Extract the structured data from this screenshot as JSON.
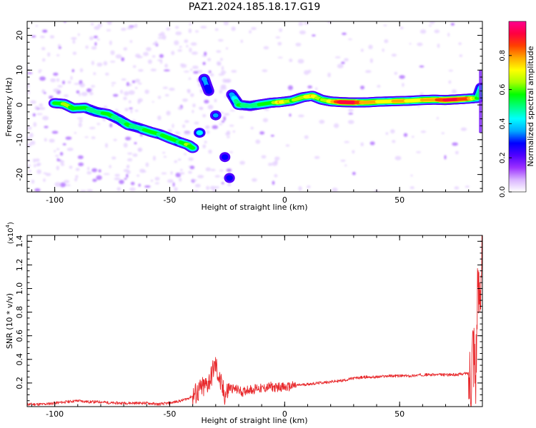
{
  "title": "PAZ1.2024.185.18.17.G19",
  "chart_data": [
    {
      "type": "heatmap",
      "xlabel": "Height of straight line (km)",
      "ylabel": "Frequency (Hz)",
      "xlim": [
        -112,
        86
      ],
      "ylim": [
        -25,
        24
      ],
      "xticks": [
        -100,
        -50,
        0,
        50
      ],
      "yticks": [
        -20,
        -10,
        0,
        10,
        20
      ],
      "colorbar": {
        "label": "Normalized spectral amplitude",
        "range": [
          0,
          1
        ],
        "ticks": [
          "0.0",
          "0.2",
          "0.4",
          "0.6",
          "0.8"
        ],
        "colormap": [
          "#ffffff",
          "#d9b3ff",
          "#9b30ff",
          "#5000ff",
          "#0000ff",
          "#00aaff",
          "#00ffff",
          "#00ff80",
          "#00ff00",
          "#aaff00",
          "#ffff00",
          "#ffaa00",
          "#ff4000",
          "#ff0040",
          "#ff0090"
        ]
      },
      "ridge": [
        {
          "x": -100,
          "y": 0.5,
          "a": 0.55
        },
        {
          "x": -96,
          "y": 0.3,
          "a": 0.62
        },
        {
          "x": -92,
          "y": -1.0,
          "a": 0.6
        },
        {
          "x": -87,
          "y": -0.8,
          "a": 0.55
        },
        {
          "x": -82,
          "y": -2.0,
          "a": 0.5
        },
        {
          "x": -77,
          "y": -2.6,
          "a": 0.56
        },
        {
          "x": -72,
          "y": -4.2,
          "a": 0.5
        },
        {
          "x": -68,
          "y": -5.8,
          "a": 0.55
        },
        {
          "x": -64,
          "y": -6.5,
          "a": 0.5
        },
        {
          "x": -58,
          "y": -7.8,
          "a": 0.58
        },
        {
          "x": -54,
          "y": -8.5,
          "a": 0.52
        },
        {
          "x": -50,
          "y": -9.6,
          "a": 0.6
        },
        {
          "x": -46,
          "y": -10.6,
          "a": 0.52
        },
        {
          "x": -42,
          "y": -11.5,
          "a": 0.63
        },
        {
          "x": -40,
          "y": -12.4,
          "a": 0.55
        },
        {
          "x": -37,
          "y": -8.0,
          "a": 0.45
        },
        {
          "x": -35,
          "y": 7.5,
          "a": 0.35
        },
        {
          "x": -33,
          "y": 4.0,
          "a": 0.3
        },
        {
          "x": -30,
          "y": -3.0,
          "a": 0.35
        },
        {
          "x": -26,
          "y": -15.0,
          "a": 0.3
        },
        {
          "x": -24,
          "y": -21.0,
          "a": 0.3
        },
        {
          "x": -23,
          "y": 3.0,
          "a": 0.35
        },
        {
          "x": -20,
          "y": 0.0,
          "a": 0.55
        },
        {
          "x": -15,
          "y": -0.3,
          "a": 0.5
        },
        {
          "x": -10,
          "y": 0.2,
          "a": 0.55
        },
        {
          "x": -6,
          "y": 0.6,
          "a": 0.55
        },
        {
          "x": -2,
          "y": 0.8,
          "a": 0.75
        },
        {
          "x": 3,
          "y": 1.2,
          "a": 0.6
        },
        {
          "x": 8,
          "y": 2.2,
          "a": 0.65
        },
        {
          "x": 12,
          "y": 2.6,
          "a": 0.75
        },
        {
          "x": 16,
          "y": 1.5,
          "a": 0.6
        },
        {
          "x": 20,
          "y": 1.0,
          "a": 0.7
        },
        {
          "x": 25,
          "y": 0.8,
          "a": 0.95
        },
        {
          "x": 30,
          "y": 0.7,
          "a": 0.95
        },
        {
          "x": 35,
          "y": 0.7,
          "a": 0.75
        },
        {
          "x": 40,
          "y": 0.9,
          "a": 0.75
        },
        {
          "x": 45,
          "y": 1.0,
          "a": 0.7
        },
        {
          "x": 50,
          "y": 1.1,
          "a": 0.8
        },
        {
          "x": 55,
          "y": 1.2,
          "a": 0.7
        },
        {
          "x": 60,
          "y": 1.4,
          "a": 0.75
        },
        {
          "x": 65,
          "y": 1.5,
          "a": 0.8
        },
        {
          "x": 70,
          "y": 1.4,
          "a": 0.9
        },
        {
          "x": 75,
          "y": 1.6,
          "a": 0.9
        },
        {
          "x": 80,
          "y": 1.8,
          "a": 0.85
        },
        {
          "x": 84,
          "y": 2.0,
          "a": 0.55
        },
        {
          "x": 85.5,
          "y": 5.0,
          "a": 0.45
        }
      ]
    },
    {
      "type": "line",
      "xlabel": "Height of straight line (km)",
      "ylabel": "SNR (10 * v/v)",
      "yscale_note": "(x10",
      "yscale_exp": "4",
      "yscale_close": ")",
      "xlim": [
        -112,
        86
      ],
      "ylim": [
        0,
        1.45
      ],
      "xticks": [
        -100,
        -50,
        0,
        50
      ],
      "yticks": [
        "0.2",
        "0.4",
        "0.6",
        "0.8",
        "1.0",
        "1.2",
        "1.4"
      ],
      "ytick_values": [
        0.2,
        0.4,
        0.6,
        0.8,
        1.0,
        1.2,
        1.4
      ],
      "line_color": "#e8282b",
      "x": [
        -112,
        -105,
        -100,
        -95,
        -90,
        -85,
        -80,
        -75,
        -70,
        -65,
        -60,
        -55,
        -50,
        -45,
        -42,
        -40,
        -38,
        -36,
        -34,
        -32,
        -31,
        -30,
        -29,
        -28,
        -27,
        -26,
        -25,
        -24,
        -22,
        -20,
        -18,
        -16,
        -14,
        -12,
        -10,
        -8,
        -6,
        -4,
        -2,
        0,
        5,
        10,
        15,
        20,
        25,
        30,
        35,
        40,
        45,
        50,
        55,
        60,
        65,
        70,
        75,
        78,
        80,
        81,
        82,
        83,
        84,
        85,
        86
      ],
      "y": [
        0.02,
        0.02,
        0.03,
        0.04,
        0.05,
        0.04,
        0.04,
        0.03,
        0.03,
        0.03,
        0.03,
        0.02,
        0.03,
        0.05,
        0.07,
        0.09,
        0.12,
        0.15,
        0.18,
        0.25,
        0.32,
        0.35,
        0.28,
        0.2,
        0.14,
        0.1,
        0.12,
        0.16,
        0.15,
        0.14,
        0.12,
        0.15,
        0.14,
        0.16,
        0.15,
        0.16,
        0.17,
        0.16,
        0.17,
        0.16,
        0.18,
        0.19,
        0.2,
        0.21,
        0.22,
        0.24,
        0.25,
        0.25,
        0.26,
        0.26,
        0.26,
        0.27,
        0.27,
        0.27,
        0.27,
        0.28,
        0.28,
        0.3,
        0.6,
        0.3,
        0.9,
        1.1,
        1.4
      ]
    }
  ]
}
